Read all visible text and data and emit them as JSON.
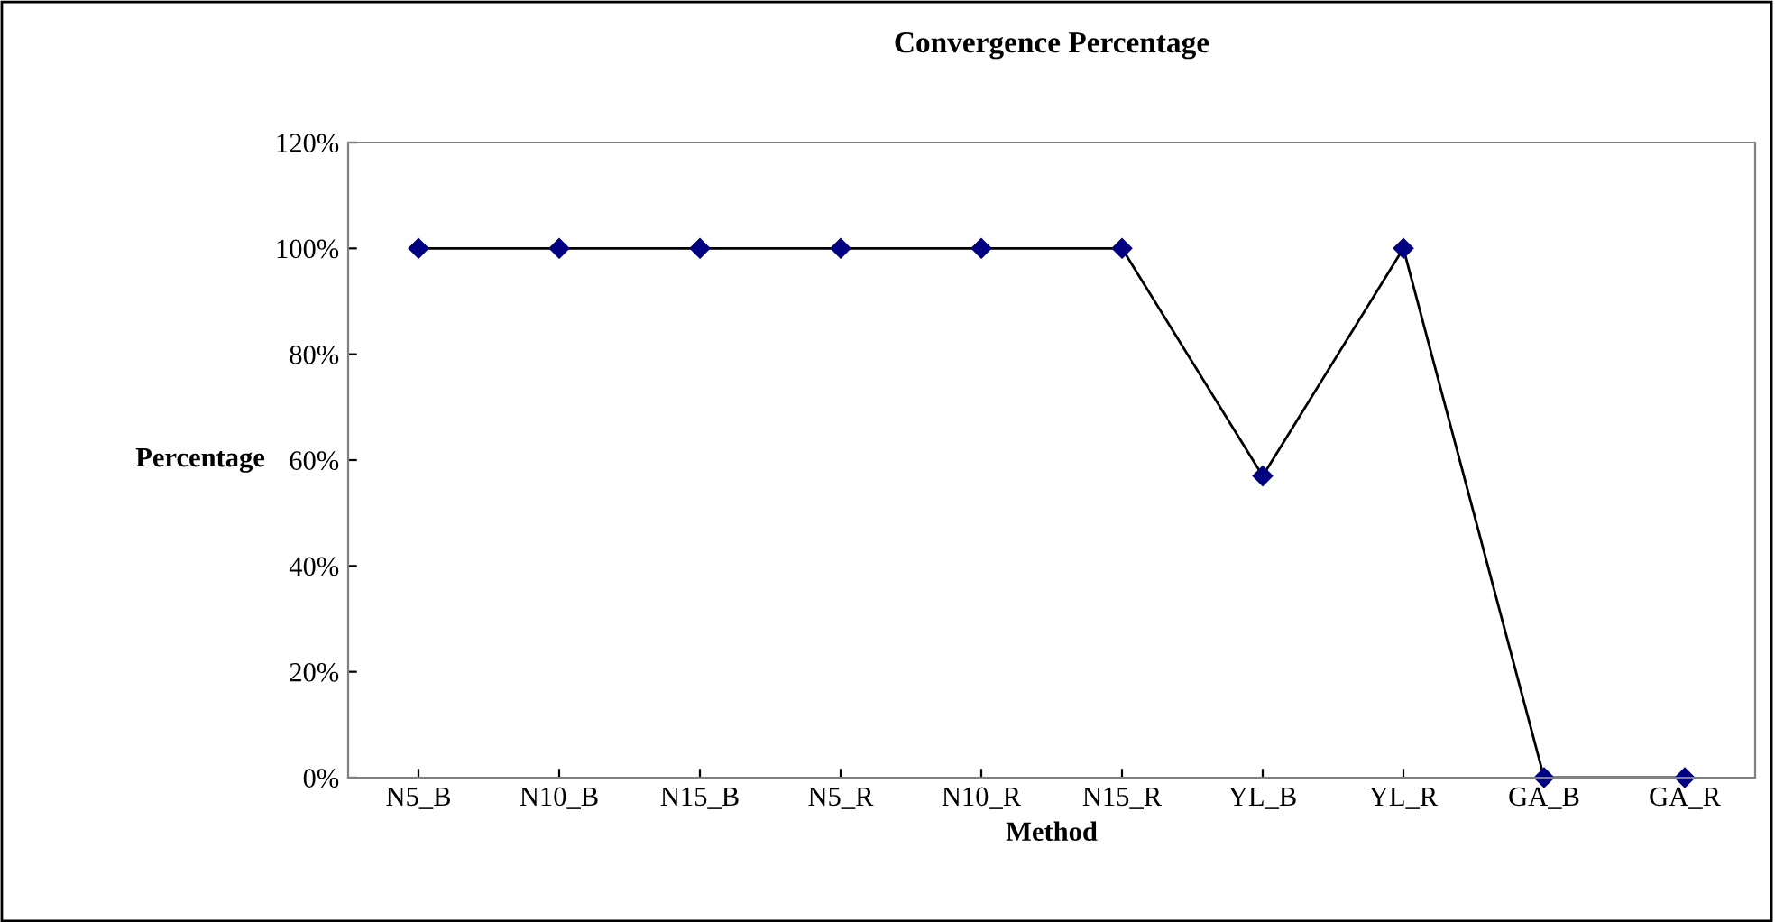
{
  "chart_data": {
    "type": "line",
    "title": "Convergence Percentage",
    "xlabel": "Method",
    "ylabel": "Percentage",
    "categories": [
      "N5_B",
      "N10_B",
      "N15_B",
      "N5_R",
      "N10_R",
      "N15_R",
      "YL_B",
      "YL_R",
      "GA_B",
      "GA_R"
    ],
    "series": [
      {
        "color": "#000080",
        "values": [
          100,
          100,
          100,
          100,
          100,
          100,
          57,
          100,
          0,
          0
        ]
      }
    ],
    "ylim": [
      0,
      120
    ],
    "yticks": [
      {
        "value": 0,
        "label": "0%"
      },
      {
        "value": 20,
        "label": "20%"
      },
      {
        "value": 40,
        "label": "40%"
      },
      {
        "value": 60,
        "label": "60%"
      },
      {
        "value": 80,
        "label": "80%"
      },
      {
        "value": 100,
        "label": "100%"
      },
      {
        "value": 120,
        "label": "120%"
      }
    ],
    "grid": false,
    "legend": false,
    "marker": "diamond",
    "line_style": "solid"
  }
}
